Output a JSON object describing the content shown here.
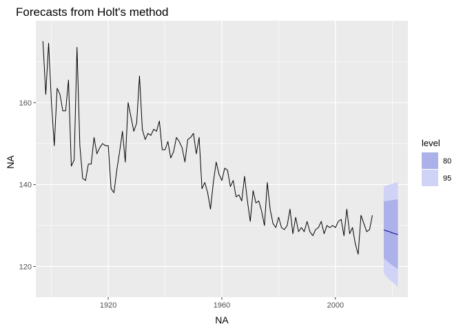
{
  "chart_data": {
    "type": "line",
    "title": "Forecasts from Holt's method",
    "xlabel": "NA",
    "ylabel": "NA",
    "xlim": [
      1894.5,
      2025.5
    ],
    "ylim": [
      112.5,
      180
    ],
    "x_ticks": [
      1920,
      1960,
      2000
    ],
    "y_ticks": [
      120,
      140,
      160
    ],
    "grid": true,
    "legend_position": "right",
    "legend": {
      "title": "level",
      "entries": [
        {
          "label": "80",
          "color": "#adb1ea"
        },
        {
          "label": "95",
          "color": "#d1d3f6"
        }
      ]
    },
    "series": [
      {
        "x_start": 1897,
        "values": [
          175,
          162,
          174.5,
          160,
          149.5,
          163.5,
          162,
          158,
          158,
          165.5,
          144.5,
          146,
          173.5,
          149.5,
          141.5,
          141,
          145,
          145,
          151.5,
          147.5,
          149,
          150,
          149.5,
          149.5,
          139,
          138,
          143.5,
          148,
          153,
          145.5,
          160,
          156.5,
          153,
          155,
          166.5,
          153.5,
          151,
          152.5,
          152,
          153.5,
          153,
          155.5,
          148.5,
          148.5,
          150.5,
          146.5,
          148,
          151.5,
          150.5,
          149,
          145.5,
          151,
          151.5,
          152.5,
          147.5,
          151.5,
          139,
          140.5,
          138,
          134,
          140.5,
          145.5,
          142.5,
          141,
          144,
          143.5,
          139.5,
          141,
          137,
          137.5,
          136,
          142,
          136,
          131,
          138.5,
          135.5,
          136,
          133.5,
          130,
          140.5,
          134,
          130.5,
          129.5,
          132,
          129.5,
          129,
          130,
          134,
          128,
          132,
          128.5,
          129.5,
          128.5,
          131,
          128.5,
          127.5,
          129,
          129.5,
          131,
          128,
          130,
          129.5,
          130,
          129.5,
          131,
          131.5,
          127.5,
          134,
          128,
          129.5,
          125.5,
          123,
          132.5,
          130.5,
          128.5,
          129,
          132.5
        ],
        "color": "#000000"
      }
    ],
    "forecast": {
      "x": [
        2017,
        2018,
        2019,
        2020,
        2021,
        2022
      ],
      "mean": [
        128.9,
        128.7,
        128.5,
        128.2,
        128.0,
        127.8
      ],
      "lo80": [
        122.0,
        121.4,
        120.8,
        120.3,
        119.8,
        119.4
      ],
      "hi80": [
        135.9,
        136.0,
        136.1,
        136.2,
        136.3,
        136.4
      ],
      "lo95": [
        118.3,
        117.5,
        116.8,
        116.2,
        115.6,
        115.0
      ],
      "hi95": [
        139.6,
        139.8,
        140.0,
        140.2,
        140.4,
        140.6
      ],
      "mean_color": "#000080"
    }
  }
}
